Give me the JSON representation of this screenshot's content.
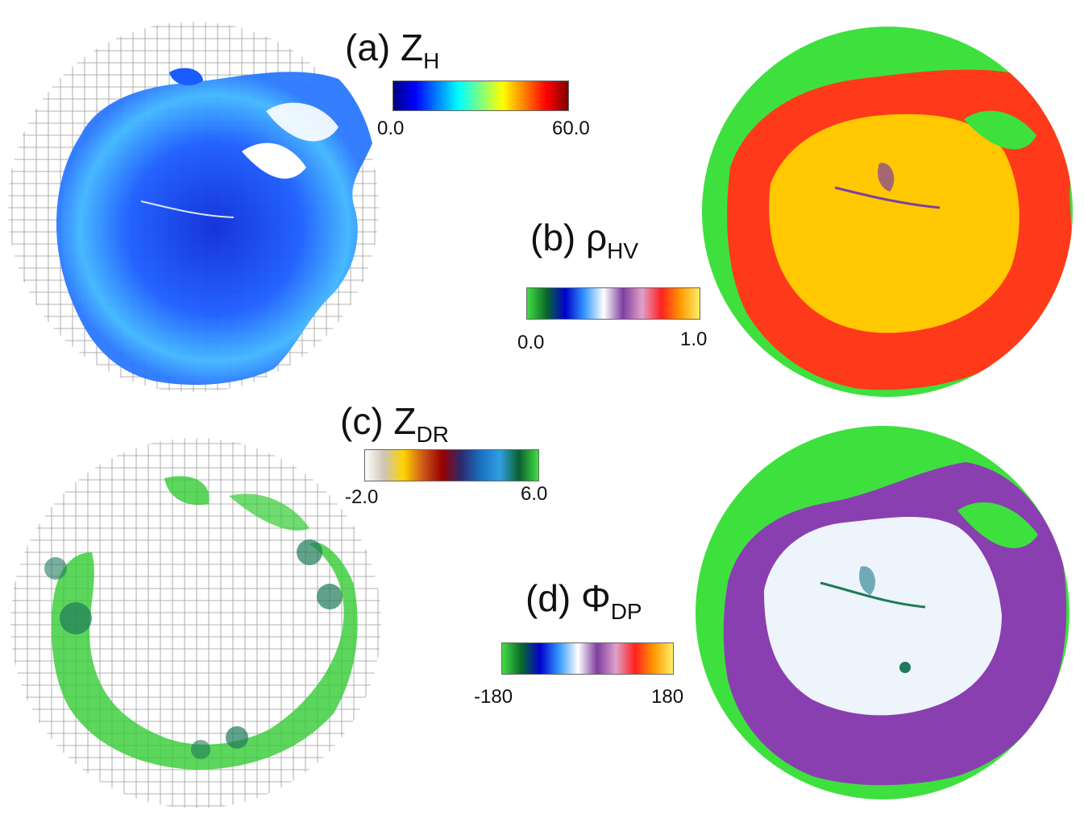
{
  "panels": {
    "a": {
      "prefix": "(a) Z",
      "sub": "H",
      "min_label": "0.0",
      "max_label": "60.0",
      "colors": [
        "#00007f",
        "#0000ff",
        "#007fff",
        "#00ffff",
        "#7fff7f",
        "#ffff00",
        "#ff7f00",
        "#ff0000",
        "#7f0000"
      ]
    },
    "b": {
      "prefix": "(b) ρ",
      "sub": "HV",
      "min_label": "0.0",
      "max_label": "1.0",
      "colors": [
        "#44dd44",
        "#0a6b2a",
        "#0000cc",
        "#3399ff",
        "#ffffff",
        "#7f3fa0",
        "#e0a0c8",
        "#ff2020",
        "#ff9900",
        "#ffee66"
      ]
    },
    "c": {
      "prefix": "(c) Z",
      "sub": "DR",
      "min_label": "-2.0",
      "max_label": "6.0",
      "colors": [
        "#ffffff",
        "#ccc4b4",
        "#ffd400",
        "#cc5a1a",
        "#9a0000",
        "#2a2a70",
        "#1a70c0",
        "#30a0e0",
        "#0a6030",
        "#44dd44"
      ]
    },
    "d": {
      "prefix": "(d) Φ",
      "sub": "DP",
      "min_label": "-180",
      "max_label": "180",
      "colors": [
        "#44dd44",
        "#0a6b2a",
        "#0000cc",
        "#3399ff",
        "#ffffff",
        "#7f3fa0",
        "#e0a0c8",
        "#ff2020",
        "#ff9900",
        "#ffee66"
      ]
    }
  },
  "radar_colors": {
    "zh_fill": "#1a5cff",
    "zh_light": "#3fb6ff",
    "rho_bg": "#3ee03e",
    "rho_outer": "#ff3a1a",
    "rho_inner": "#ffc800",
    "zdr_fill": "#33cc33",
    "zdr_dark": "#1f7a5a",
    "phi_bg": "#3ee03e",
    "phi_outer": "#8a3fb0",
    "phi_inner": "#eef4fb",
    "grid": "#9a9a9a"
  }
}
